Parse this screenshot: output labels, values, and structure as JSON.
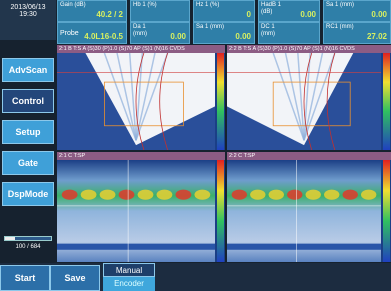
{
  "status": {
    "date": "2013/06/13",
    "time": "19:30"
  },
  "fields": [
    {
      "label": "Gain (dB)",
      "value": "40.2 / 2"
    },
    {
      "label": "Hb 1 (%)"
    },
    {
      "label": "Hz 1 (%)",
      "value": "0"
    },
    {
      "label": "HadB 1 (dB)",
      "value": "0.00"
    },
    {
      "label": "Sa 1 (mm)",
      "value": "0.00"
    },
    {
      "label": "Probe",
      "value": "4.0L16-0.5"
    },
    {
      "label": "Da 1 (mm)",
      "value": "0.00"
    },
    {
      "label": "Sa 1 (mm)",
      "value": "0.00"
    },
    {
      "label": "DC 1 (mm)"
    },
    {
      "label": "RC1 (mm)",
      "value": "27.02"
    }
  ],
  "menu": [
    "AdvScan",
    "Control",
    "Setup",
    "Gate",
    "DspMode"
  ],
  "slider": {
    "label": "100 / 684"
  },
  "panels": [
    {
      "title": "2:1 B  T:S A (S)30 (P)1.0 (S)70 AP (S)1 (N)16 CVDS"
    },
    {
      "title": "2:2 B  T:S A (S)30 (P)1.0 (S)70 AP (S)1 (N)16 CVDS"
    },
    {
      "title": "2:1 C  T:SP"
    },
    {
      "title": "2:2 C  T:SP"
    }
  ],
  "footer": {
    "start": "Start",
    "save": "Save",
    "mode": "Manual",
    "encoder": "Encoder"
  }
}
